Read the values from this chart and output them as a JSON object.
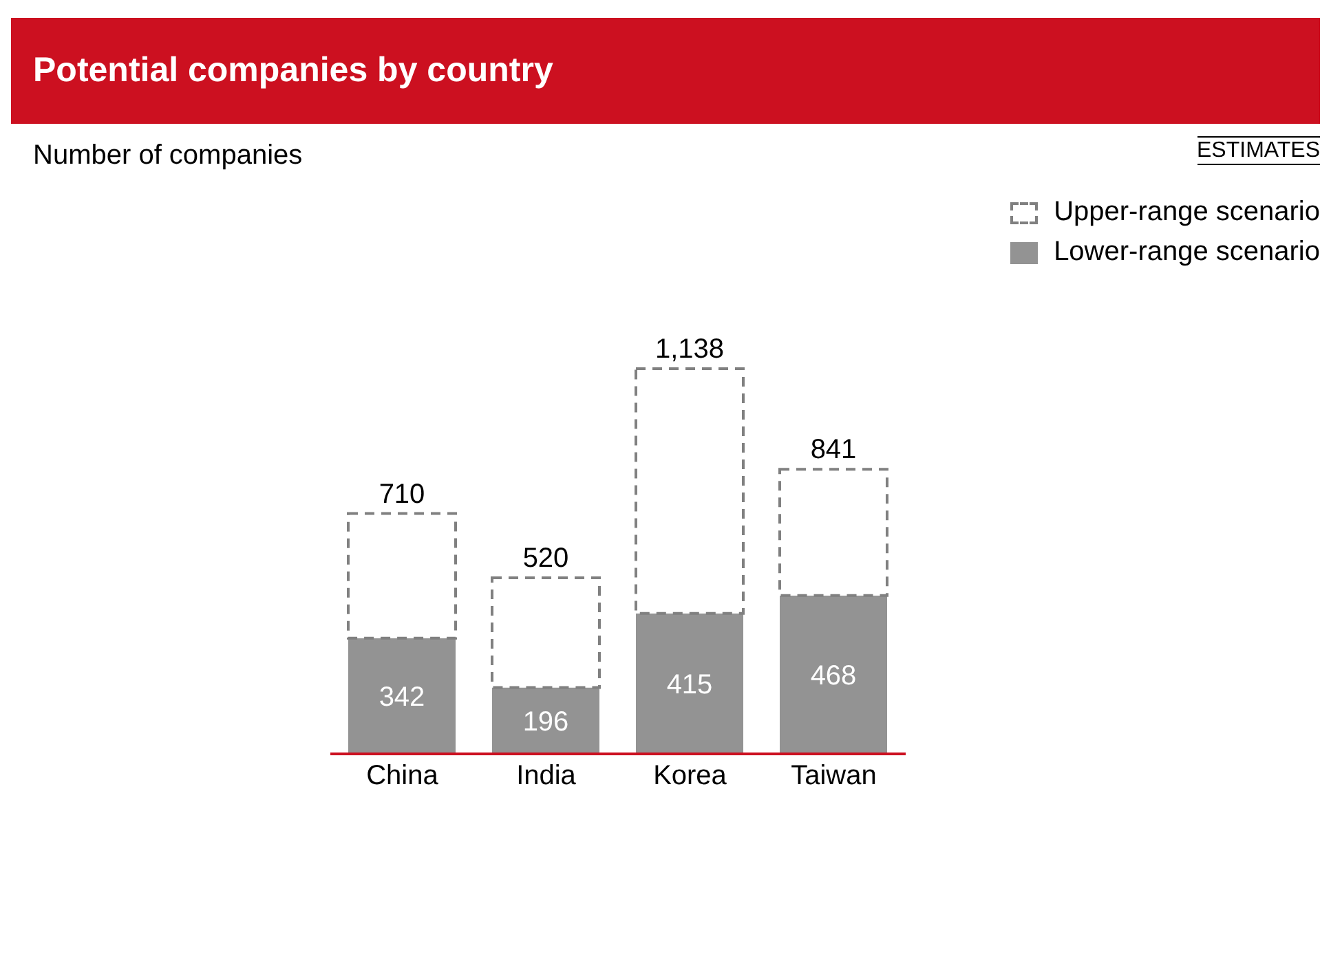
{
  "chart_data": {
    "type": "bar",
    "title": "Potential companies by country",
    "subtitle": "Number of companies",
    "annotations": [
      "ESTIMATES"
    ],
    "categories": [
      "China",
      "India",
      "Korea",
      "Taiwan"
    ],
    "stacked": true,
    "legend": "top right",
    "tick_labels": "x",
    "totals": [
      "710",
      "520",
      "1,138",
      "841"
    ],
    "series": [
      {
        "name": "Lower-range scenario",
        "color": "#939393",
        "values": [
          342,
          196,
          415,
          468
        ],
        "value_labels": [
          "342",
          "196",
          "415",
          "468"
        ]
      },
      {
        "name": "Upper-range scenario",
        "color": "#808080",
        "line_style": "dashed",
        "values": [
          368,
          324,
          723,
          373
        ]
      }
    ]
  }
}
